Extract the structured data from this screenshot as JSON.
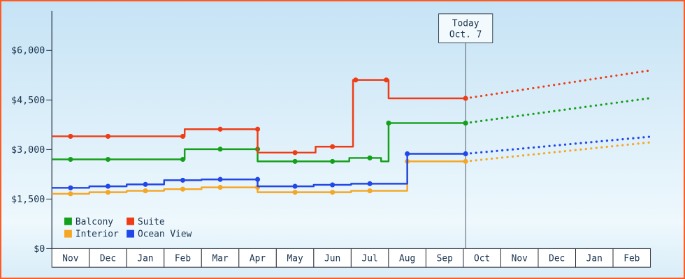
{
  "frame": {
    "border_color": "#ff5a1f",
    "background_top": "#c6e3f5",
    "background_mid": "#eef8fd",
    "background_bottom": "#d9edf8"
  },
  "text_color": "#1c344f",
  "chart_data": {
    "type": "step-line",
    "title": "",
    "description": "Cabin price history by month; solid history with dots, dotted forecast after today marker",
    "y_axis": {
      "max": 6000,
      "ticks": [
        0,
        1500,
        3000,
        4500,
        6000
      ],
      "tick_labels": [
        "$0",
        "$1,500",
        "$3,000",
        "$4,500",
        "$6,000"
      ]
    },
    "x_axis": {
      "months": [
        "Nov",
        "Dec",
        "Jan",
        "Feb",
        "Mar",
        "Apr",
        "May",
        "Jun",
        "Jul",
        "Aug",
        "Sep",
        "Oct",
        "Nov",
        "Dec",
        "Jan",
        "Feb"
      ]
    },
    "today": {
      "line1": "Today",
      "line2": "Oct. 7",
      "x_unit": 10.56
    },
    "legend": {
      "rows": [
        [
          "Balcony",
          "Suite"
        ],
        [
          "Interior",
          "Ocean View"
        ]
      ]
    },
    "series": [
      {
        "name": "Balcony",
        "color": "#14a01a",
        "solid": [
          [
            -0.5,
            2700
          ],
          [
            3.05,
            2700
          ],
          [
            3.05,
            3010
          ],
          [
            5,
            3010
          ],
          [
            5,
            2640
          ],
          [
            7.45,
            2640
          ],
          [
            7.45,
            2745
          ],
          [
            8.3,
            2745
          ],
          [
            8.3,
            2640
          ],
          [
            8.5,
            2640
          ],
          [
            8.5,
            3800
          ],
          [
            10.56,
            3800
          ]
        ],
        "dots": [
          [
            0,
            2700
          ],
          [
            1,
            2700
          ],
          [
            3,
            2700
          ],
          [
            4,
            3010
          ],
          [
            5,
            3010
          ],
          [
            6,
            2640
          ],
          [
            7,
            2640
          ],
          [
            8,
            2745
          ],
          [
            8.5,
            3800
          ],
          [
            10.56,
            3800
          ]
        ],
        "projection": [
          [
            10.56,
            3800
          ],
          [
            15.52,
            4560
          ]
        ]
      },
      {
        "name": "Suite",
        "color": "#ee3c16",
        "solid": [
          [
            -0.5,
            3400
          ],
          [
            3.05,
            3400
          ],
          [
            3.05,
            3615
          ],
          [
            5,
            3615
          ],
          [
            5,
            2905
          ],
          [
            6.55,
            2905
          ],
          [
            6.55,
            3085
          ],
          [
            7.55,
            3085
          ],
          [
            7.55,
            5105
          ],
          [
            8.5,
            5105
          ],
          [
            8.5,
            4550
          ],
          [
            10.56,
            4550
          ]
        ],
        "dots": [
          [
            0,
            3400
          ],
          [
            1,
            3400
          ],
          [
            3,
            3400
          ],
          [
            4,
            3615
          ],
          [
            5,
            3615
          ],
          [
            6,
            2905
          ],
          [
            7,
            3085
          ],
          [
            7.62,
            5105
          ],
          [
            8.44,
            5105
          ],
          [
            10.56,
            4550
          ]
        ],
        "projection": [
          [
            10.56,
            4550
          ],
          [
            15.52,
            5400
          ]
        ]
      },
      {
        "name": "Interior",
        "color": "#f5a623",
        "solid": [
          [
            -0.5,
            1660
          ],
          [
            0.5,
            1660
          ],
          [
            0.5,
            1705
          ],
          [
            1.5,
            1705
          ],
          [
            1.5,
            1750
          ],
          [
            2.5,
            1750
          ],
          [
            2.5,
            1800
          ],
          [
            3.5,
            1800
          ],
          [
            3.5,
            1855
          ],
          [
            5,
            1855
          ],
          [
            5,
            1705
          ],
          [
            7.5,
            1705
          ],
          [
            7.5,
            1750
          ],
          [
            9,
            1750
          ],
          [
            9,
            2640
          ],
          [
            10.56,
            2640
          ]
        ],
        "dots": [
          [
            0,
            1660
          ],
          [
            1,
            1705
          ],
          [
            2,
            1750
          ],
          [
            3,
            1800
          ],
          [
            4,
            1855
          ],
          [
            5,
            1855
          ],
          [
            6,
            1705
          ],
          [
            7,
            1705
          ],
          [
            8,
            1750
          ],
          [
            9,
            2640
          ],
          [
            10.56,
            2640
          ]
        ],
        "projection": [
          [
            10.56,
            2640
          ],
          [
            15.52,
            3220
          ]
        ]
      },
      {
        "name": "Ocean View",
        "color": "#2247e8",
        "solid": [
          [
            -0.5,
            1840
          ],
          [
            0.5,
            1840
          ],
          [
            0.5,
            1885
          ],
          [
            1.5,
            1885
          ],
          [
            1.5,
            1945
          ],
          [
            2.5,
            1945
          ],
          [
            2.5,
            2070
          ],
          [
            3.5,
            2070
          ],
          [
            3.5,
            2095
          ],
          [
            5,
            2095
          ],
          [
            5,
            1885
          ],
          [
            6.5,
            1885
          ],
          [
            6.5,
            1930
          ],
          [
            7.5,
            1930
          ],
          [
            7.5,
            1965
          ],
          [
            9,
            1965
          ],
          [
            9,
            2870
          ],
          [
            10.56,
            2870
          ]
        ],
        "dots": [
          [
            0,
            1840
          ],
          [
            1,
            1885
          ],
          [
            2,
            1945
          ],
          [
            3,
            2070
          ],
          [
            4,
            2095
          ],
          [
            5,
            2095
          ],
          [
            6,
            1885
          ],
          [
            7,
            1930
          ],
          [
            8,
            1965
          ],
          [
            9,
            2870
          ],
          [
            10.56,
            2870
          ]
        ],
        "projection": [
          [
            10.56,
            2870
          ],
          [
            15.52,
            3390
          ]
        ]
      }
    ]
  }
}
